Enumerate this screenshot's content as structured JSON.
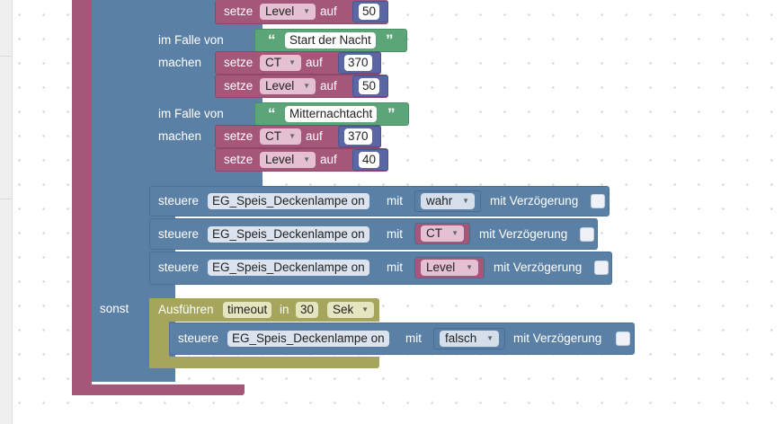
{
  "case_blocks": [
    {
      "label_case": "im Falle von",
      "label_do": "machen",
      "text": "Start der Nacht",
      "sets": [
        {
          "verb": "setze",
          "var": "CT",
          "to": "auf",
          "value": "370"
        },
        {
          "verb": "setze",
          "var": "Level",
          "to": "auf",
          "value": "50"
        }
      ]
    },
    {
      "label_case": "im Falle von",
      "label_do": "machen",
      "text": "Mitternachtacht",
      "sets": [
        {
          "verb": "setze",
          "var": "CT",
          "to": "auf",
          "value": "370"
        },
        {
          "verb": "setze",
          "var": "Level",
          "to": "auf",
          "value": "40"
        }
      ]
    }
  ],
  "top_partial": {
    "verb": "setze",
    "var": "Level",
    "to": "auf",
    "value": "50"
  },
  "control_blocks": [
    {
      "verb": "steuere",
      "device": "EG_Speis_Deckenlampe on",
      "with": "mit",
      "value": "wahr",
      "delay": "mit Verzögerung"
    },
    {
      "verb": "steuere",
      "device": "EG_Speis_Deckenlampe on",
      "with": "mit",
      "value": "CT",
      "delay": "mit Verzögerung"
    },
    {
      "verb": "steuere",
      "device": "EG_Speis_Deckenlampe on",
      "with": "mit",
      "value": "Level",
      "delay": "mit Verzögerung"
    }
  ],
  "else_label": "sonst",
  "timeout_block": {
    "label": "Ausführen",
    "var": "timeout",
    "in": "in",
    "amount": "30",
    "unit": "Sek",
    "inner": {
      "verb": "steuere",
      "device": "EG_Speis_Deckenlampe on",
      "with": "mit",
      "value": "falsch",
      "delay": "mit Verzögerung"
    }
  },
  "colors": {
    "logic": "#5b80a5",
    "variable": "#a5577a",
    "math": "#5b67a5",
    "text": "#5ba578",
    "timeout": "#a5a55b"
  },
  "icons": {
    "dropdown": "triangle-down-icon",
    "quote_open": "open-quote-icon",
    "quote_close": "close-quote-icon"
  }
}
